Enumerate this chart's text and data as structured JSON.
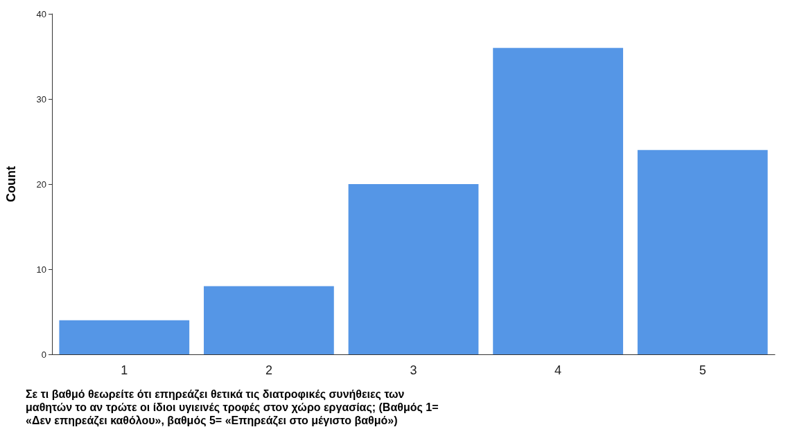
{
  "chart_data": {
    "type": "bar",
    "xlabel": "Σε τι βαθμό θεωρείτε ότι επηρεάζει θετικά τις διατροφικές συνήθειες των μαθητών το αν τρώτε οι ίδιοι υγιεινές τροφές στον χώρο εργασίας; (Βαθμός 1= «Δεν επηρεάζει καθόλου», βαθμός 5= «Επηρεάζει στο μέγιστο βαθμό»)",
    "ylabel": "Count",
    "categories": [
      "1",
      "2",
      "3",
      "4",
      "5"
    ],
    "values": [
      4,
      8,
      20,
      36,
      24
    ],
    "color": "#5596e6",
    "ylim": [
      0,
      40
    ],
    "yticks": [
      0,
      10,
      20,
      30,
      40
    ],
    "grid": false
  }
}
